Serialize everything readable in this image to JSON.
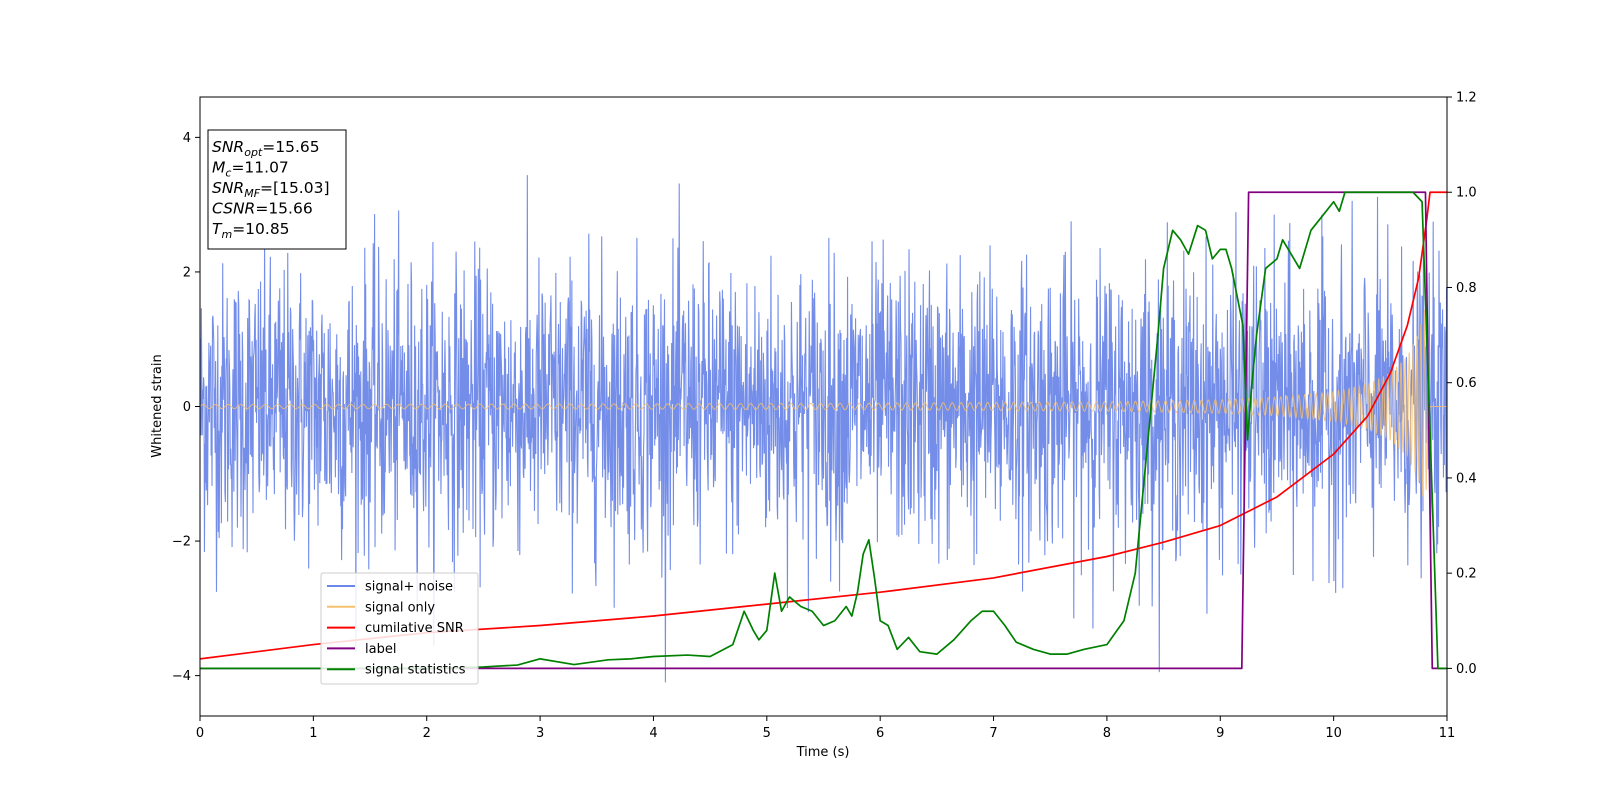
{
  "chart_data": {
    "type": "line",
    "title": "",
    "xlabel": "Time (s)",
    "ylabel": "Whitened strain",
    "xlim": [
      0,
      11
    ],
    "ylim_left": [
      -4.6,
      4.6
    ],
    "ylim_right": [
      -0.1,
      1.2
    ],
    "x_ticks": [
      0,
      1,
      2,
      3,
      4,
      5,
      6,
      7,
      8,
      9,
      10,
      11
    ],
    "y_left_ticks": [
      -4,
      -2,
      0,
      2,
      4
    ],
    "y_left_tick_labels": [
      "−4",
      "−2",
      "0",
      "2",
      "4"
    ],
    "y_right_ticks": [
      0.0,
      0.2,
      0.4,
      0.6,
      0.8,
      1.0,
      1.2
    ],
    "y_right_tick_labels": [
      "0.0",
      "0.2",
      "0.4",
      "0.6",
      "0.8",
      "1.0",
      "1.2"
    ],
    "grid": false,
    "legend_position": "lower-left",
    "series": [
      {
        "name": "signal+ noise",
        "axis": "left",
        "color": "#6b87e8",
        "description_values": "noise envelope approx ±2.3, peaks to about 4.2 near t=1.9 and -4.1 near t=0.05"
      },
      {
        "name": "signal only",
        "axis": "left",
        "color": "#f5c06f",
        "amplitude_profile": {
          "x": [
            0,
            2,
            4,
            6,
            8,
            9,
            9.5,
            10,
            10.3,
            10.5,
            10.65,
            10.75,
            10.81,
            10.85
          ],
          "amplitude": [
            0.03,
            0.035,
            0.04,
            0.05,
            0.07,
            0.1,
            0.14,
            0.22,
            0.33,
            0.5,
            0.75,
            1.1,
            1.5,
            0
          ]
        }
      },
      {
        "name": "cumilative SNR",
        "axis": "right",
        "color": "#ff0000",
        "x": [
          0,
          1,
          2,
          3,
          4,
          5,
          6,
          7,
          8,
          8.5,
          9,
          9.5,
          10,
          10.3,
          10.5,
          10.65,
          10.75,
          10.82,
          10.85,
          11
        ],
        "y": [
          0.02,
          0.05,
          0.075,
          0.09,
          0.11,
          0.135,
          0.16,
          0.19,
          0.235,
          0.265,
          0.3,
          0.36,
          0.45,
          0.53,
          0.62,
          0.72,
          0.82,
          0.94,
          1.0,
          1.0
        ]
      },
      {
        "name": "label",
        "axis": "right",
        "color": "#800080",
        "x": [
          0,
          9.19,
          9.25,
          10.81,
          10.87,
          11
        ],
        "y": [
          0,
          0,
          1,
          1,
          0,
          0
        ]
      },
      {
        "name": "signal statistics",
        "axis": "right",
        "color": "#008000",
        "x": [
          0,
          1,
          2,
          2.5,
          2.8,
          3,
          3.3,
          3.6,
          3.8,
          4,
          4.3,
          4.5,
          4.7,
          4.8,
          4.88,
          4.93,
          5.0,
          5.07,
          5.13,
          5.2,
          5.3,
          5.4,
          5.5,
          5.6,
          5.7,
          5.75,
          5.8,
          5.85,
          5.9,
          5.95,
          6.0,
          6.07,
          6.15,
          6.25,
          6.35,
          6.5,
          6.65,
          6.8,
          6.9,
          7.0,
          7.1,
          7.2,
          7.35,
          7.5,
          7.65,
          7.8,
          8.0,
          8.15,
          8.25,
          8.35,
          8.45,
          8.5,
          8.58,
          8.65,
          8.72,
          8.8,
          8.87,
          8.93,
          9.0,
          9.05,
          9.1,
          9.15,
          9.2,
          9.24,
          9.28,
          9.32,
          9.4,
          9.5,
          9.55,
          9.6,
          9.7,
          9.8,
          9.9,
          10.0,
          10.05,
          10.1,
          10.2,
          10.3,
          10.5,
          10.7,
          10.78,
          10.85,
          10.92,
          11
        ],
        "y": [
          0,
          0,
          0,
          0.003,
          0.007,
          0.02,
          0.008,
          0.018,
          0.02,
          0.025,
          0.028,
          0.025,
          0.05,
          0.12,
          0.08,
          0.06,
          0.08,
          0.2,
          0.12,
          0.15,
          0.13,
          0.12,
          0.09,
          0.1,
          0.13,
          0.11,
          0.16,
          0.24,
          0.27,
          0.19,
          0.1,
          0.09,
          0.04,
          0.065,
          0.035,
          0.03,
          0.06,
          0.1,
          0.12,
          0.12,
          0.09,
          0.055,
          0.04,
          0.03,
          0.03,
          0.04,
          0.05,
          0.1,
          0.2,
          0.45,
          0.7,
          0.84,
          0.92,
          0.9,
          0.87,
          0.93,
          0.92,
          0.86,
          0.88,
          0.88,
          0.84,
          0.78,
          0.72,
          0.48,
          0.6,
          0.7,
          0.84,
          0.86,
          0.9,
          0.88,
          0.84,
          0.92,
          0.95,
          0.98,
          0.96,
          1.0,
          1.0,
          1.0,
          1.0,
          1.0,
          0.98,
          0.5,
          0.0,
          0.0
        ]
      }
    ],
    "legend": [
      "signal+ noise",
      "signal only",
      "cumilative SNR",
      "label",
      "signal statistics"
    ],
    "annotation_box": {
      "lines": [
        {
          "base": "SNR",
          "sub": "opt",
          "value": "=15.65"
        },
        {
          "base": "M",
          "sub": "c",
          "value": "=11.07"
        },
        {
          "base": "SNR",
          "sub": "MF",
          "value": "=[15.03]"
        },
        {
          "base": "CSNR",
          "sub": "",
          "value": "=15.66"
        },
        {
          "base": "T",
          "sub": "m",
          "value": "=10.85"
        }
      ]
    }
  }
}
